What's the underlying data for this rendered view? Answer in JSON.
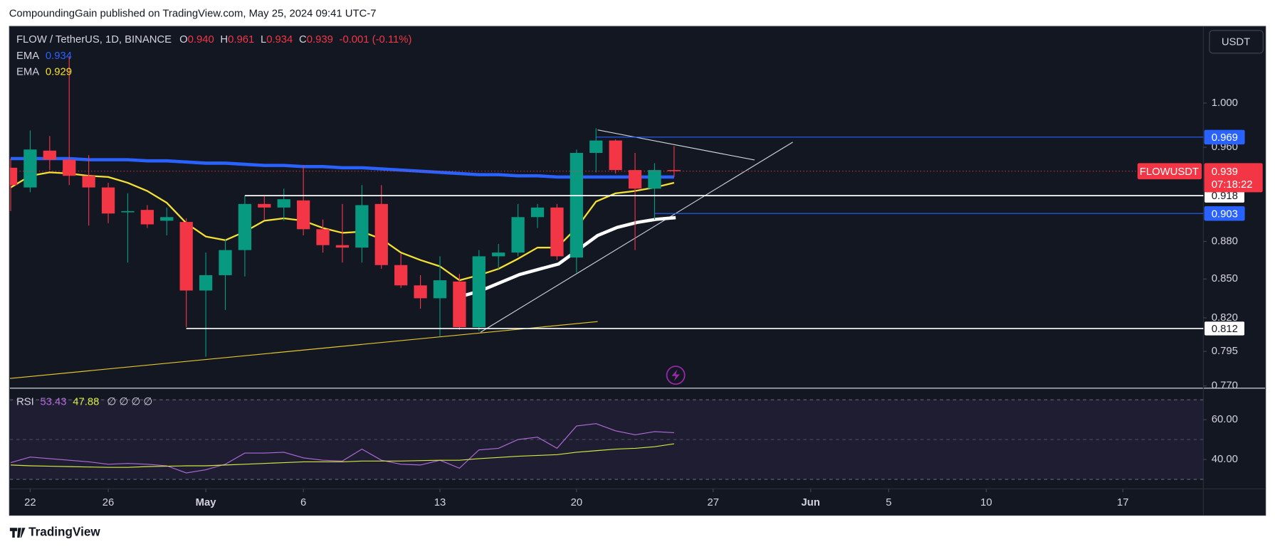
{
  "publisher": "CompoundingGain published on TradingView.com, May 25, 2024 09:41 UTC-7",
  "brand": "TradingView",
  "chart_data": {
    "type": "candlestick",
    "title": "FLOW / TetherUS, 1D, BINANCE",
    "ohlc_legend": [
      {
        "key": "O",
        "value": "0.940"
      },
      {
        "key": "H",
        "value": "0.961"
      },
      {
        "key": "L",
        "value": "0.934"
      },
      {
        "key": "C",
        "value": "0.939"
      }
    ],
    "change": "-0.001 (-0.11%)",
    "up_color": "#089981",
    "down_color": "#f23645",
    "x": [
      "2024-04-21",
      "2024-04-22",
      "2024-04-23",
      "2024-04-24",
      "2024-04-25",
      "2024-04-26",
      "2024-04-27",
      "2024-04-28",
      "2024-04-29",
      "2024-04-30",
      "2024-05-01",
      "2024-05-02",
      "2024-05-03",
      "2024-05-04",
      "2024-05-05",
      "2024-05-06",
      "2024-05-07",
      "2024-05-08",
      "2024-05-09",
      "2024-05-10",
      "2024-05-11",
      "2024-05-12",
      "2024-05-13",
      "2024-05-14",
      "2024-05-15",
      "2024-05-16",
      "2024-05-17",
      "2024-05-18",
      "2024-05-19",
      "2024-05-20",
      "2024-05-21",
      "2024-05-22",
      "2024-05-23",
      "2024-05-24",
      "2024-05-25"
    ],
    "open": [
      0.942,
      0.925,
      0.957,
      0.949,
      0.935,
      0.925,
      0.904,
      0.906,
      0.897,
      0.896,
      0.841,
      0.853,
      0.873,
      0.911,
      0.908,
      0.914,
      0.89,
      0.877,
      0.875,
      0.911,
      0.861,
      0.845,
      0.835,
      0.848,
      0.813,
      0.868,
      0.871,
      0.9,
      0.908,
      0.867,
      0.955,
      0.966,
      0.94,
      0.924,
      0.94
    ],
    "high": [
      0.95,
      0.975,
      0.97,
      1.044,
      0.953,
      0.929,
      0.92,
      0.91,
      0.908,
      0.899,
      0.871,
      0.882,
      0.918,
      0.918,
      0.924,
      0.944,
      0.898,
      0.911,
      0.927,
      0.927,
      0.87,
      0.853,
      0.868,
      0.854,
      0.873,
      0.878,
      0.911,
      0.911,
      0.911,
      0.958,
      0.977,
      0.967,
      0.955,
      0.946,
      0.961
    ],
    "low": [
      0.905,
      0.921,
      0.94,
      0.927,
      0.893,
      0.895,
      0.863,
      0.891,
      0.885,
      0.813,
      0.791,
      0.826,
      0.852,
      0.898,
      0.897,
      0.885,
      0.871,
      0.863,
      0.863,
      0.858,
      0.843,
      0.827,
      0.806,
      0.811,
      0.81,
      0.858,
      0.868,
      0.891,
      0.865,
      0.855,
      0.938,
      0.937,
      0.873,
      0.898,
      0.934
    ],
    "close": [
      0.927,
      0.958,
      0.949,
      0.935,
      0.925,
      0.903,
      0.905,
      0.894,
      0.9,
      0.841,
      0.853,
      0.873,
      0.911,
      0.908,
      0.915,
      0.89,
      0.877,
      0.875,
      0.91,
      0.861,
      0.845,
      0.835,
      0.849,
      0.813,
      0.868,
      0.871,
      0.9,
      0.908,
      0.868,
      0.955,
      0.966,
      0.94,
      0.924,
      0.94,
      0.939
    ],
    "series": [
      {
        "name": "EMA",
        "color": "#2962ff",
        "last_label": "0.934",
        "values": [
          0.95,
          0.95,
          0.95,
          0.95,
          0.949,
          0.949,
          0.949,
          0.948,
          0.948,
          0.947,
          0.946,
          0.946,
          0.945,
          0.944,
          0.944,
          0.943,
          0.943,
          0.942,
          0.942,
          0.941,
          0.94,
          0.939,
          0.938,
          0.937,
          0.936,
          0.936,
          0.935,
          0.935,
          0.934,
          0.934,
          0.934,
          0.934,
          0.934,
          0.934,
          0.934
        ]
      },
      {
        "name": "EMA",
        "color": "#f5e133",
        "last_label": "0.929",
        "values": [
          0.925,
          0.935,
          0.938,
          0.937,
          0.935,
          0.934,
          0.929,
          0.922,
          0.912,
          0.895,
          0.884,
          0.881,
          0.888,
          0.897,
          0.899,
          0.897,
          0.891,
          0.887,
          0.888,
          0.882,
          0.871,
          0.865,
          0.86,
          0.849,
          0.853,
          0.858,
          0.866,
          0.875,
          0.875,
          0.891,
          0.913,
          0.92,
          0.922,
          0.925,
          0.929
        ]
      }
    ],
    "log_scale": true,
    "grid": false,
    "ylim": [
      0.769,
      1.073
    ],
    "yticks": [
      {
        "value": 1.0,
        "label": "1.000"
      },
      {
        "value": 0.96,
        "label": "0.960"
      },
      {
        "value": 0.88,
        "label": "0.880"
      },
      {
        "value": 0.85,
        "label": "0.850"
      },
      {
        "value": 0.82,
        "label": "0.820"
      },
      {
        "value": 0.795,
        "label": "0.795"
      },
      {
        "value": 0.77,
        "label": "0.770"
      }
    ],
    "xlim": [
      "2024-04-21",
      "2024-06-21"
    ],
    "xticks": [
      {
        "value": "2024-04-22",
        "label": "22"
      },
      {
        "value": "2024-04-26",
        "label": "26"
      },
      {
        "value": "2024-05-01",
        "label": "May"
      },
      {
        "value": "2024-05-06",
        "label": "6"
      },
      {
        "value": "2024-05-13",
        "label": "13"
      },
      {
        "value": "2024-05-20",
        "label": "20"
      },
      {
        "value": "2024-05-27",
        "label": "27"
      },
      {
        "value": "2024-06-01",
        "label": "Jun"
      },
      {
        "value": "2024-06-05",
        "label": "5"
      },
      {
        "value": "2024-06-10",
        "label": "10"
      },
      {
        "value": "2024-06-17",
        "label": "17"
      }
    ],
    "currency": "USDT",
    "price_tag": {
      "symbol": "FLOWUSDT",
      "label": "0.939",
      "countdown": "07:18:22"
    },
    "price_lines": [
      {
        "value": 0.969,
        "label": "0.969",
        "color": "#2962ff",
        "from": "2024-05-21"
      },
      {
        "value": 0.918,
        "label": "0.918",
        "color": "#ffffff",
        "from": "2024-05-03"
      },
      {
        "value": 0.903,
        "label": "0.903",
        "color": "#2962ff",
        "from": "2024-05-24"
      },
      {
        "value": 0.812,
        "label": "0.812",
        "color": "#ffffff",
        "from": "2024-04-30"
      }
    ],
    "rsi": {
      "name": "RSI",
      "color": "#b26bd9",
      "last_label": "53.43",
      "values": [
        38.4,
        41.2,
        40.4,
        39.6,
        38.8,
        37.6,
        38.0,
        37.6,
        36.8,
        33.2,
        34.8,
        37.6,
        43.2,
        43.2,
        43.6,
        40.8,
        39.6,
        39.2,
        45.2,
        39.6,
        37.6,
        37.2,
        39.6,
        35.6,
        44.8,
        45.6,
        50.0,
        51.2,
        45.6,
        56.8,
        58.0,
        54.4,
        52.4,
        54.0,
        53.43
      ],
      "ma": {
        "color": "#d4e83f",
        "last_label": "47.88",
        "values": [
          37.2,
          36.8,
          36.6,
          36.4,
          36.2,
          36.0,
          36.0,
          36.4,
          36.6,
          36.8,
          36.8,
          37.2,
          37.6,
          38.0,
          38.4,
          38.8,
          38.8,
          38.8,
          39.2,
          39.2,
          39.2,
          39.4,
          39.6,
          39.6,
          40.4,
          41.0,
          41.6,
          42.0,
          42.4,
          43.6,
          44.4,
          45.2,
          45.6,
          46.4,
          47.88
        ]
      },
      "extra": "∅ ∅ ∅ ∅",
      "ylim": [
        26,
        75
      ],
      "yticks": [
        {
          "value": 60,
          "label": "60.00"
        },
        {
          "value": 40,
          "label": "40.00"
        }
      ],
      "bands": [
        70,
        50,
        30
      ]
    }
  }
}
